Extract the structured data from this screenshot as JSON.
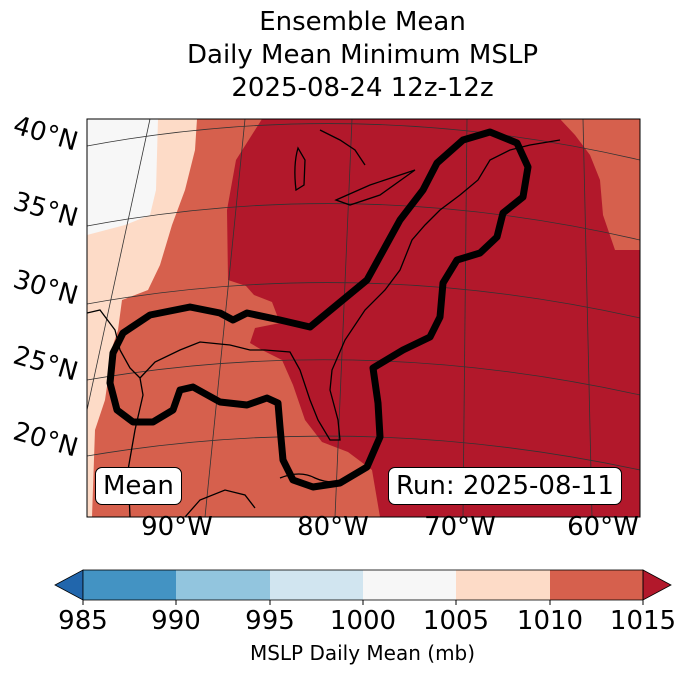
{
  "title": {
    "line1": "Ensemble Mean",
    "line2": "Daily Mean Minimum MSLP",
    "line3": "2025-08-24 12z-12z"
  },
  "lat_labels": [
    "40°N",
    "35°N",
    "30°N",
    "25°N",
    "20°N"
  ],
  "lon_labels": [
    "90°W",
    "80°W",
    "70°W",
    "60°W"
  ],
  "annotations": {
    "left": "Mean",
    "right": "Run: 2025-08-11"
  },
  "colorbar": {
    "ticks": [
      "985",
      "990",
      "995",
      "1000",
      "1005",
      "1010",
      "1015"
    ],
    "label": "MSLP Daily Mean (mb)",
    "colors": {
      "under": "#2166ac",
      "985-990": "#4393c3",
      "990-995": "#92c5de",
      "995-1000": "#d1e5f0",
      "1000-1005": "#f7f7f7",
      "1005-1010": "#fddbc7",
      "1010-1015": "#d6604d",
      "over": "#b2182b"
    }
  }
}
